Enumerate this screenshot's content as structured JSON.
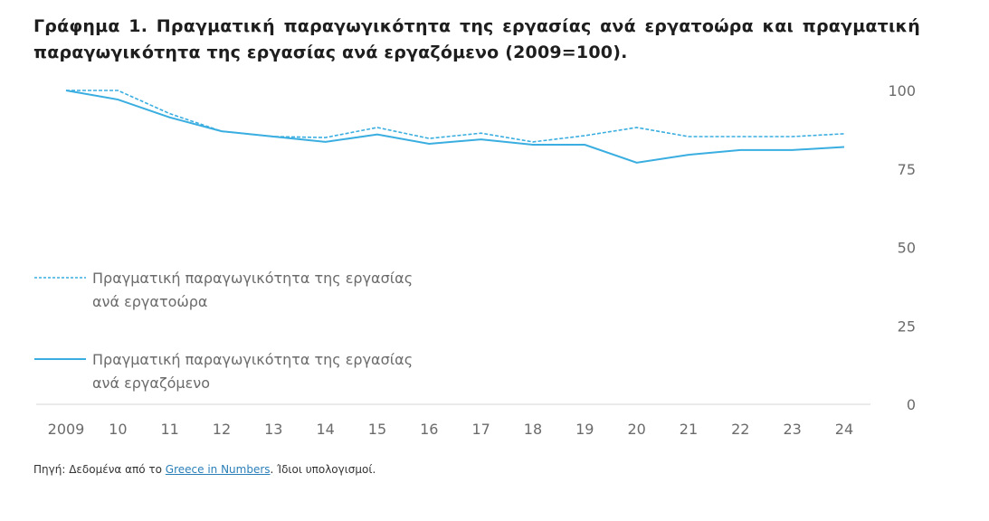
{
  "title": "Γράφημα 1. Πραγματική παραγωγικότητα της εργασίας ανά εργατοώρα και πραγματική παραγωγικότητα της εργασίας ανά εργαζόμενο (2009=100).",
  "source": {
    "prefix": "Πηγή: Δεδομένα από το ",
    "link": "Greece in Numbers",
    "suffix": ". Ίδιοι υπολογισμοί."
  },
  "chart_data": {
    "type": "line",
    "title": "Γράφημα 1. Πραγματική παραγωγικότητα της εργασίας ανά εργατοώρα και πραγματική παραγωγικότητα της εργασίας ανά εργαζόμενο (2009=100).",
    "categories": [
      "2009",
      "10",
      "11",
      "12",
      "13",
      "14",
      "15",
      "16",
      "17",
      "18",
      "19",
      "20",
      "21",
      "22",
      "23",
      "24"
    ],
    "ylim": [
      0,
      100
    ],
    "yticks": [
      "0",
      "25",
      "50",
      "75",
      "100"
    ],
    "y_axis_side": "right",
    "grid": false,
    "legend_placement": "left",
    "color": "#3aaee0",
    "series": [
      {
        "name": "Πραγματική παραγωγικότητα της εργασίας ανά εργατοώρα",
        "legend_lines": [
          "Πραγματική παραγωγικότητα της εργασίας",
          "ανά εργατοώρα"
        ],
        "style": "dashed",
        "values": [
          100,
          100,
          92.6,
          87,
          85.3,
          85,
          88.2,
          84.7,
          86.4,
          83.6,
          85.6,
          88.2,
          85.3,
          85.3,
          85.3,
          86.2
        ]
      },
      {
        "name": "Πραγματική παραγωγικότητα της εργασίας ανά εργαζόμενο",
        "legend_lines": [
          "Πραγματική παραγωγικότητα της εργασίας",
          "ανά εργαζόμενο"
        ],
        "style": "solid",
        "values": [
          100,
          97.1,
          91.4,
          87,
          85.3,
          83.6,
          86,
          83,
          84.4,
          82.7,
          82.7,
          77,
          79.5,
          81,
          81,
          82
        ]
      }
    ]
  }
}
